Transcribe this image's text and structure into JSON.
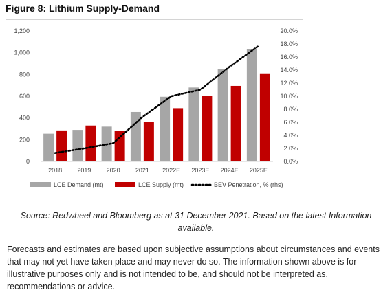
{
  "figure_title": "Figure 8: Lithium Supply-Demand",
  "source_note": "Source: Redwheel and Bloomberg as at 31 December 2021. Based on the latest Information available.",
  "disclaimer": "Forecasts and estimates are based upon subjective assumptions about circumstances and events that may not yet have taken place and may never do so. The information shown above is for illustrative purposes only and is not intended to be, and should not be interpreted as, recommendations or advice.",
  "colors": {
    "demand": "#a6a6a6",
    "supply": "#c00000",
    "penetration": "#000000"
  },
  "chart_data": {
    "type": "bar",
    "categories": [
      "2018",
      "2019",
      "2020",
      "2021",
      "2022E",
      "2023E",
      "2024E",
      "2025E"
    ],
    "series": [
      {
        "name": "LCE Demand (mt)",
        "type": "bar",
        "axis": "left",
        "values": [
          255,
          290,
          320,
          455,
          595,
          680,
          850,
          1035
        ]
      },
      {
        "name": "LCE Supply (mt)",
        "type": "bar",
        "axis": "left",
        "values": [
          285,
          330,
          280,
          360,
          490,
          600,
          695,
          810
        ]
      },
      {
        "name": "BEV Penetration, % (rhs)",
        "type": "line",
        "style": "dotted",
        "axis": "right",
        "values": [
          1.3,
          2.0,
          2.8,
          6.8,
          10.0,
          11.0,
          14.5,
          17.7
        ]
      }
    ],
    "ylim": [
      0,
      1200
    ],
    "y_ticks": [
      "0",
      "200",
      "400",
      "600",
      "800",
      "1,000",
      "1,200"
    ],
    "y2lim": [
      0,
      20
    ],
    "y2_ticks": [
      "0.0%",
      "2.0%",
      "4.0%",
      "6.0%",
      "8.0%",
      "10.0%",
      "12.0%",
      "14.0%",
      "16.0%",
      "18.0%",
      "20.0%"
    ],
    "grid": false,
    "legend": "bottom"
  }
}
